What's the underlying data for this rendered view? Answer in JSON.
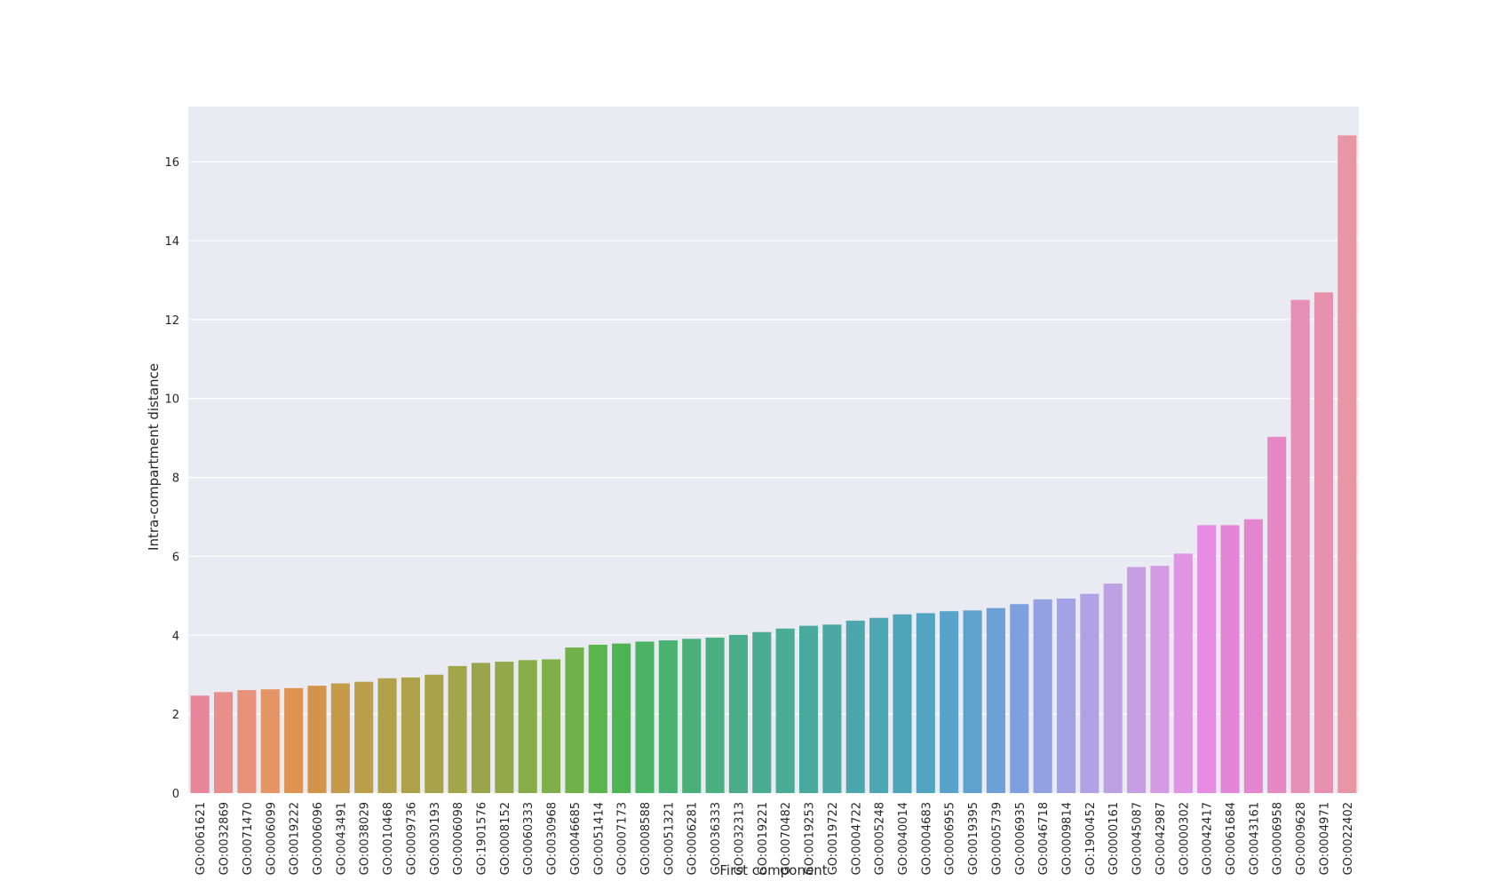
{
  "chart_data": {
    "type": "bar",
    "title": "",
    "xlabel": "First component",
    "ylabel": "Intra-compartment distance",
    "ylim": [
      0,
      17.4
    ],
    "yticks": [
      0,
      2,
      4,
      6,
      8,
      10,
      12,
      14,
      16
    ],
    "grid": true,
    "legend": "none",
    "background_color": "#EAEAF2",
    "grid_color": "#FFFFFF",
    "categories": [
      "GO:0061621",
      "GO:0032869",
      "GO:0071470",
      "GO:0006099",
      "GO:0019222",
      "GO:0006096",
      "GO:0043491",
      "GO:0038029",
      "GO:0010468",
      "GO:0009736",
      "GO:0030193",
      "GO:0006098",
      "GO:1901576",
      "GO:0008152",
      "GO:0060333",
      "GO:0030968",
      "GO:0046685",
      "GO:0051414",
      "GO:0007173",
      "GO:0008588",
      "GO:0051321",
      "GO:0006281",
      "GO:0036333",
      "GO:0032313",
      "GO:0019221",
      "GO:0070482",
      "GO:0019253",
      "GO:0019722",
      "GO:0004722",
      "GO:0005248",
      "GO:0040014",
      "GO:0004683",
      "GO:0006955",
      "GO:0019395",
      "GO:0005739",
      "GO:0006935",
      "GO:0046718",
      "GO:0009814",
      "GO:1900452",
      "GO:0000161",
      "GO:0045087",
      "GO:0042987",
      "GO:0000302",
      "GO:0042417",
      "GO:0061684",
      "GO:0043161",
      "GO:0006958",
      "GO:0009628",
      "GO:0004971",
      "GO:0022402"
    ],
    "values": [
      2.47,
      2.56,
      2.61,
      2.63,
      2.66,
      2.72,
      2.78,
      2.82,
      2.91,
      2.93,
      3.0,
      3.22,
      3.3,
      3.33,
      3.37,
      3.39,
      3.69,
      3.76,
      3.79,
      3.84,
      3.87,
      3.91,
      3.94,
      4.01,
      4.08,
      4.17,
      4.24,
      4.27,
      4.37,
      4.44,
      4.53,
      4.56,
      4.61,
      4.63,
      4.69,
      4.79,
      4.91,
      4.93,
      5.05,
      5.31,
      5.73,
      5.76,
      6.07,
      6.79,
      6.79,
      6.94,
      9.03,
      12.5,
      12.69,
      16.67
    ],
    "colors": [
      "#E8879C",
      "#E88F8C",
      "#E7917A",
      "#E59463",
      "#DE9353",
      "#D1944A",
      "#C59B4A",
      "#BB9E4A",
      "#B3A04A",
      "#ADA14A",
      "#A8A34A",
      "#A2A54A",
      "#9BA44A",
      "#93A84A",
      "#89AC4A",
      "#7EAF4A",
      "#70B24A",
      "#5AB54A",
      "#4CB552",
      "#4BB364",
      "#4AB270",
      "#4AB079",
      "#4AAF81",
      "#4AAD89",
      "#4AAC90",
      "#4AAB97",
      "#4AA99E",
      "#4AA8A5",
      "#4BA7AC",
      "#4CA6B3",
      "#4EA5BA",
      "#52A4C2",
      "#58A3C9",
      "#60A2CF",
      "#6CA0D6",
      "#7EA0DE",
      "#92A1E2",
      "#A3A2E3",
      "#B0A2E4",
      "#BDA1E4",
      "#C79DE4",
      "#D49AE4",
      "#DE95E4",
      "#E58BE2",
      "#E585D8",
      "#E585CE",
      "#E588C3",
      "#E68DB8",
      "#E791AE",
      "#E895A5"
    ]
  }
}
